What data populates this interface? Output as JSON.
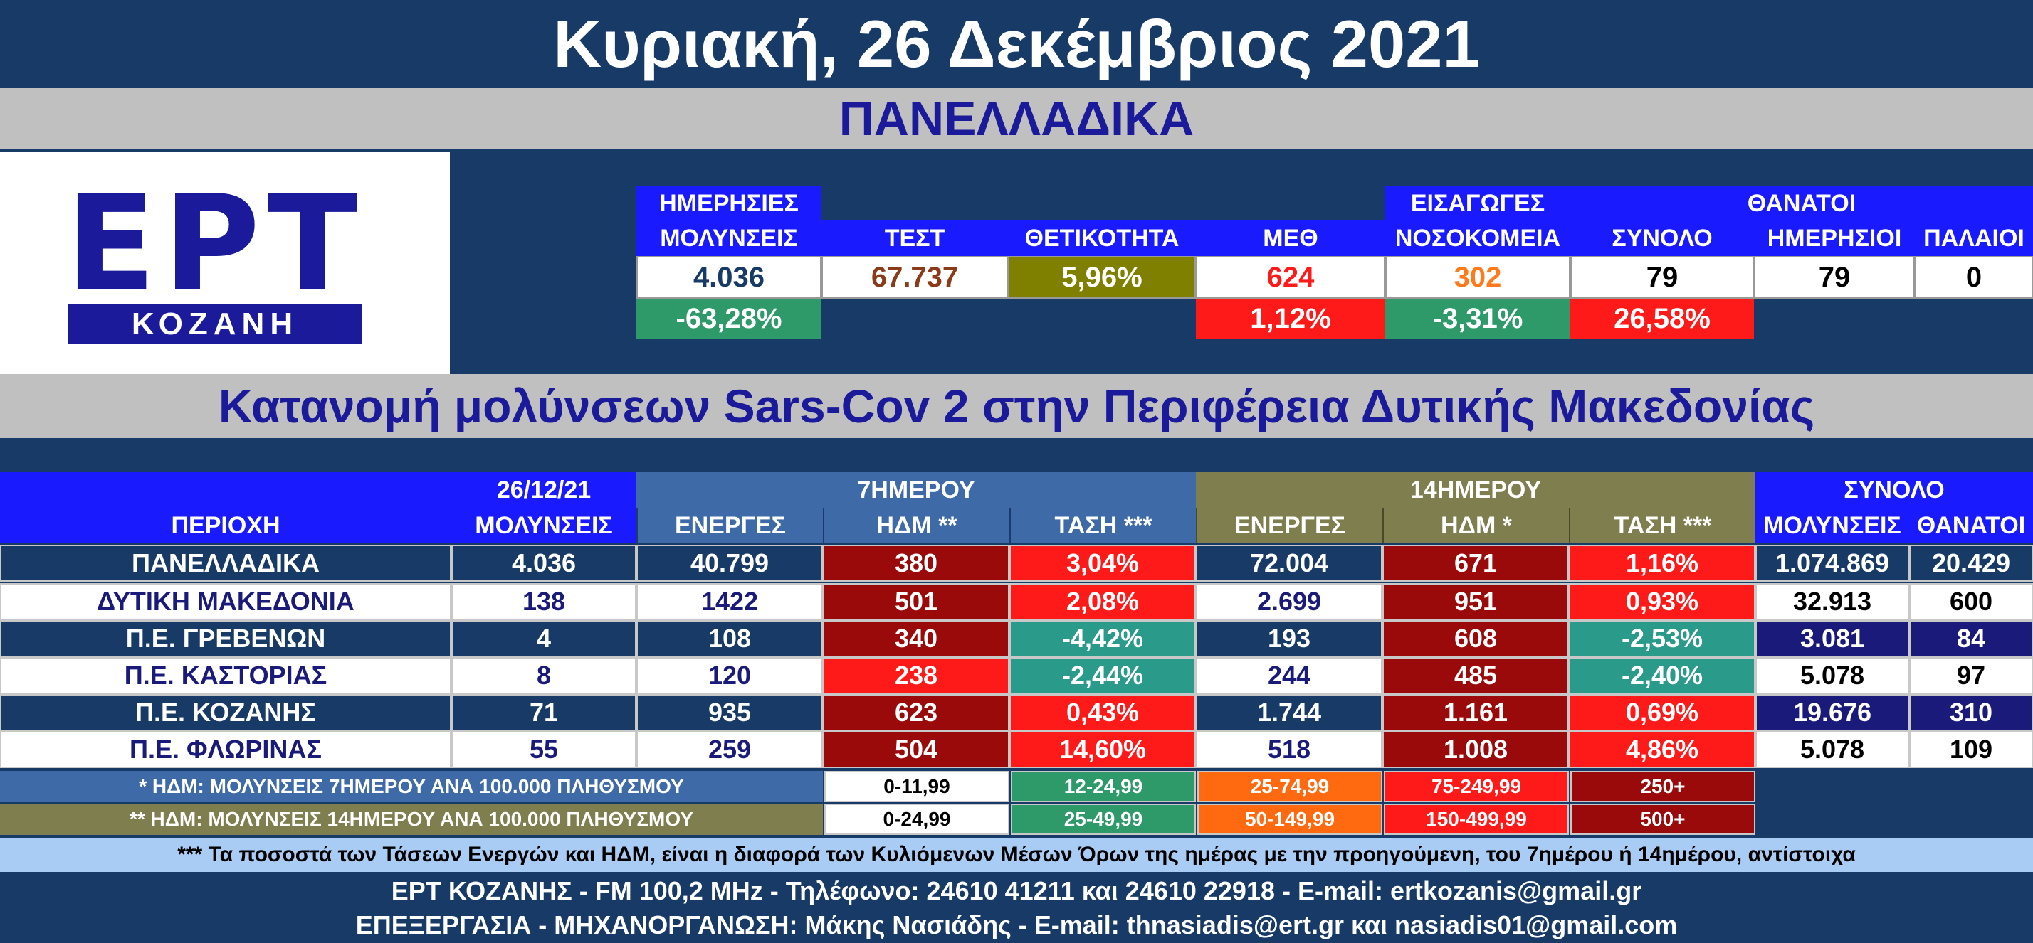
{
  "title": "Κυριακή, 26 Δεκέμβριος 2021",
  "national_heading": "ΠΑΝΕΛΛΑΔΙΚΑ",
  "logo": {
    "letters": "ΕΡΤ",
    "sub": "ΚΟΖΑΝΗ"
  },
  "national": {
    "headers": {
      "daily_cases_l1": "ΗΜΕΡΗΣΙΕΣ",
      "daily_cases_l2": "ΜΟΛΥΝΣΕΙΣ",
      "tests": "ΤΕΣΤ",
      "positivity": "ΘΕΤΙΚΟΤΗΤΑ",
      "icu": "ΜΕΘ",
      "admissions_l1": "ΕΙΣΑΓΩΓΕΣ",
      "admissions_l2": "ΝΟΣΟΚΟΜΕΙΑ",
      "deaths_group": "ΘΑΝΑΤΟΙ",
      "deaths_total": "ΣΥΝΟΛΟ",
      "deaths_daily": "ΗΜΕΡΗΣΙΟΙ",
      "deaths_old": "ΠΑΛΑΙΟΙ"
    },
    "values": {
      "daily_cases": "4.036",
      "tests": "67.737",
      "positivity": "5,96%",
      "icu": "624",
      "admissions": "302",
      "deaths_total": "79",
      "deaths_daily": "79",
      "deaths_old": "0"
    },
    "changes": {
      "daily_cases": "-63,28%",
      "icu": "1,12%",
      "admissions": "-3,31%",
      "deaths_total": "26,58%"
    }
  },
  "distribution_heading": "Κατανομή μολύνσεων Sars-Cov 2 στην Περιφέρεια Δυτικής Μακεδονίας",
  "table": {
    "headers": {
      "region": "ΠΕΡΙΟΧΗ",
      "date": "26/12/21",
      "cases": "ΜΟΛΥΝΣΕΙΣ",
      "seven_day": "7ΗΜΕΡΟΥ",
      "fourteen_day": "14ΗΜΕΡΟΥ",
      "active": "ΕΝΕΡΓΕΣ",
      "idm7": "ΗΔΜ **",
      "trend7": "ΤΑΣΗ ***",
      "active14": "ΕΝΕΡΓΕΣ",
      "idm14": "ΗΔΜ *",
      "trend14": "ΤΑΣΗ ***",
      "total": "ΣΥΝΟΛΟ",
      "total_cases": "ΜΟΛΥΝΣΕΙΣ",
      "total_deaths": "ΘΑΝΑΤΟΙ"
    },
    "rows": [
      {
        "region": "ΠΑΝΕΛΛΑΔΙΚΑ",
        "cases": "4.036",
        "active7": "40.799",
        "idm7": "380",
        "trend7": "3,04%",
        "active14": "72.004",
        "idm14": "671",
        "trend14": "1,16%",
        "total_cases": "1.074.869",
        "total_deaths": "20.429"
      },
      {
        "region": "ΔΥΤΙΚΗ ΜΑΚΕΔΟΝΙΑ",
        "cases": "138",
        "active7": "1422",
        "idm7": "501",
        "trend7": "2,08%",
        "active14": "2.699",
        "idm14": "951",
        "trend14": "0,93%",
        "total_cases": "32.913",
        "total_deaths": "600"
      },
      {
        "region": "Π.Ε. ΓΡΕΒΕΝΩΝ",
        "cases": "4",
        "active7": "108",
        "idm7": "340",
        "trend7": "-4,42%",
        "active14": "193",
        "idm14": "608",
        "trend14": "-2,53%",
        "total_cases": "3.081",
        "total_deaths": "84"
      },
      {
        "region": "Π.Ε. ΚΑΣΤΟΡΙΑΣ",
        "cases": "8",
        "active7": "120",
        "idm7": "238",
        "trend7": "-2,44%",
        "active14": "244",
        "idm14": "485",
        "trend14": "-2,40%",
        "total_cases": "5.078",
        "total_deaths": "97"
      },
      {
        "region": "Π.Ε. ΚΟΖΑΝΗΣ",
        "cases": "71",
        "active7": "935",
        "idm7": "623",
        "trend7": "0,43%",
        "active14": "1.744",
        "idm14": "1.161",
        "trend14": "0,69%",
        "total_cases": "19.676",
        "total_deaths": "310"
      },
      {
        "region": "Π.Ε. ΦΛΩΡΙΝΑΣ",
        "cases": "55",
        "active7": "259",
        "idm7": "504",
        "trend7": "14,60%",
        "active14": "518",
        "idm14": "1.008",
        "trend14": "4,86%",
        "total_cases": "5.078",
        "total_deaths": "109"
      }
    ]
  },
  "legend": {
    "row1": {
      "label": "* ΗΔΜ: ΜΟΛΥΝΣΕΙΣ 7ΗΜΕΡΟΥ ΑΝΑ 100.000 ΠΛΗΘΥΣΜΟΥ",
      "ranges": [
        "0-11,99",
        "12-24,99",
        "25-74,99",
        "75-249,99",
        "250+"
      ]
    },
    "row2": {
      "label": "** ΗΔΜ: ΜΟΛΥΝΣΕΙΣ 14ΗΜΕΡΟΥ ΑΝΑ 100.000 ΠΛΗΘΥΣΜΟΥ",
      "ranges": [
        "0-24,99",
        "25-49,99",
        "50-149,99",
        "150-499,99",
        "500+"
      ]
    },
    "colors": [
      "#ffffff",
      "#2e9a6a",
      "#ff6a10",
      "#ff1a1a",
      "#9a0a0a"
    ]
  },
  "footnote": "*** Τα ποσοστά των Τάσεων Ενεργών και ΗΔΜ, είναι η διαφορά των Κυλιόμενων Μέσων Όρων της ημέρας με την προηγούμενη, του 7ημέρου ή 14ημέρου, αντίστοιχα",
  "footer": {
    "line1": "ΕΡΤ ΚΟΖΑΝΗΣ - FM 100,2 MHz - Τηλέφωνο:  24610 41211 και 24610 22918 - E-mail: ertkozanis@gmail.gr",
    "line2": "ΕΠΕΞΕΡΓΑΣΙΑ  -  ΜΗΧΑΝΟΡΓΑΝΩΣΗ: Μάκης Νασιάδης  -   E-mail: thnasiadis@ert.gr και nasiadis01@gmail.com"
  }
}
